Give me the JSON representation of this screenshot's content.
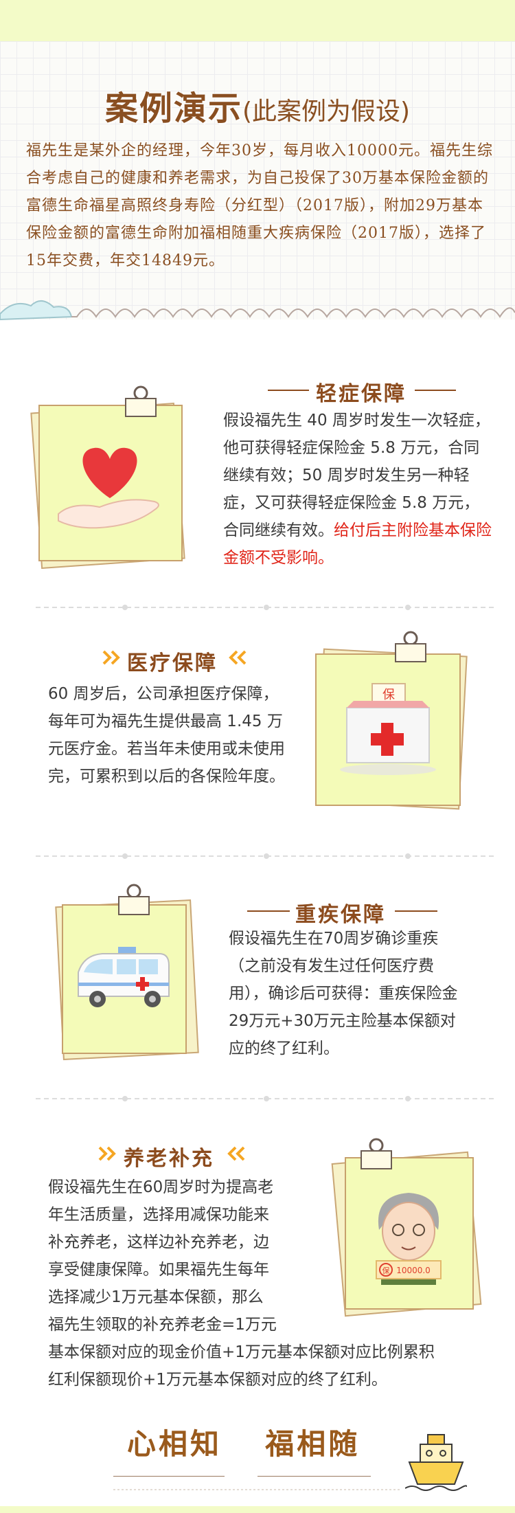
{
  "case": {
    "title_main": "案例演示",
    "title_note": "(此案例为假设)",
    "intro": "福先生是某外企的经理，今年30岁，每月收入10000元。福先生综合考虑自己的健康和养老需求，为自己投保了30万基本保险金额的富德生命福星高照终身寿险（分红型）（2017版），附加29万基本保险金额的富德生命附加福相随重大疾病保险（2017版），选择了15年交费，年交14849元。"
  },
  "sections": {
    "mild": {
      "title": "轻症保障",
      "text": "假设福先生 40 周岁时发生一次轻症，他可获得轻症保险金 5.8 万元，合同继续有效；50 周岁时发生另一种轻症，又可获得轻症保险金 5.8 万元，合同继续有效。",
      "text_red": "给付后主附险基本保险金额不受影响。",
      "icon": "heart-in-hand-icon"
    },
    "medical": {
      "title": "医疗保障",
      "text": "60 周岁后，公司承担医疗保障，每年可为福先生提供最高 1.45 万元医疗金。若当年未使用或未使用完，可累积到以后的各保险年度。",
      "box_label": "保",
      "icon": "insurance-box-icon"
    },
    "critical": {
      "title": "重疾保障",
      "text": "假设福先生在70周岁确诊重疾（之前没有发生过任何医疗费用），确诊后可获得：重疾保险金29万元+30万元主险基本保额对应的终了红利。",
      "icon": "ambulance-icon"
    },
    "pension": {
      "title": "养老补充",
      "text_lines": [
        "假设福先生在60周岁时为提高老",
        "年生活质量，选择用减保功能来",
        "补充养老，这样边补充养老，边",
        "享受健康保障。如果福先生每年",
        "选择减少1万元基本保额，那么",
        "福先生领取的补充养老金=1万元",
        "基本保额对应的现金价值+1万元基本保额对应比例累积",
        "红利保额现价+1万元基本保额对应的终了红利。"
      ],
      "sign_bao": "保",
      "sign_amount": "10000.0",
      "icon": "elderly-man-icon"
    }
  },
  "closing": {
    "left": "心相知",
    "right": "福相随",
    "icon": "boat-icon"
  },
  "colors": {
    "title_brown": "#8c4b1d",
    "body_text": "#3a3a3a",
    "highlight_red": "#e02418",
    "arrow_orange": "#f5a623",
    "card_yellow": "#f4fbb8",
    "band_green": "#f3fbc8"
  }
}
